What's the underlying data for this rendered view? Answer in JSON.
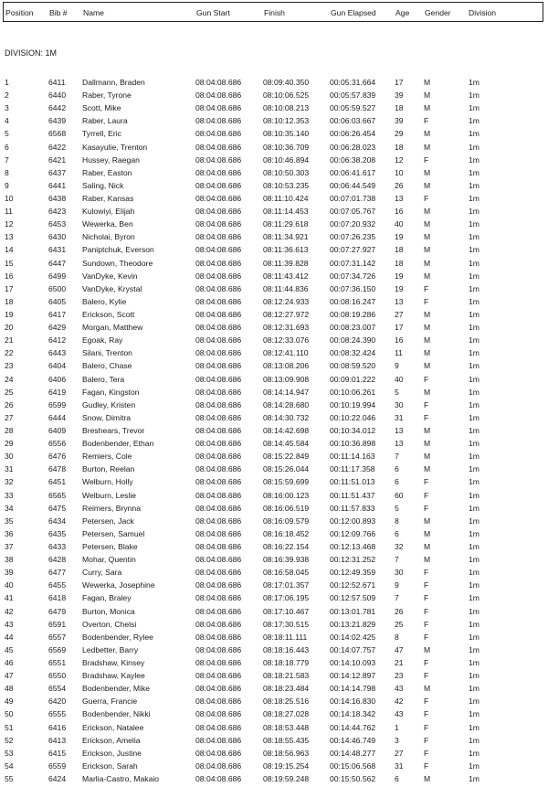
{
  "headers": [
    "Position",
    "Bib #",
    "Name",
    "Gun Start",
    "Finish",
    "Gun Elapsed",
    "Age",
    "Gender",
    "Division"
  ],
  "division_label": "DIVISION: 1M",
  "rows": [
    [
      "1",
      "6411",
      "Dallmann, Braden",
      "08:04:08.686",
      "08:09:40.350",
      "00:05:31.664",
      "17",
      "M",
      "1m"
    ],
    [
      "2",
      "6440",
      "Raber, Tyrone",
      "08:04:08.686",
      "08:10:06.525",
      "00:05:57.839",
      "39",
      "M",
      "1m"
    ],
    [
      "3",
      "6442",
      "Scott, Mike",
      "08:04:08.686",
      "08:10:08.213",
      "00:05:59.527",
      "18",
      "M",
      "1m"
    ],
    [
      "4",
      "6439",
      "Raber, Laura",
      "08:04:08.686",
      "08:10:12.353",
      "00:06:03.667",
      "39",
      "F",
      "1m"
    ],
    [
      "5",
      "6568",
      "Tyrrell, Eric",
      "08:04:08.686",
      "08:10:35.140",
      "00:06:26.454",
      "29",
      "M",
      "1m"
    ],
    [
      "6",
      "6422",
      "Kasayulie, Trenton",
      "08:04:08.686",
      "08:10:36.709",
      "00:06:28.023",
      "18",
      "M",
      "1m"
    ],
    [
      "7",
      "6421",
      "Hussey, Raegan",
      "08:04:08.686",
      "08:10:46.894",
      "00:06:38.208",
      "12",
      "F",
      "1m"
    ],
    [
      "8",
      "6437",
      "Raber, Easton",
      "08:04:08.686",
      "08:10:50.303",
      "00:06:41.617",
      "10",
      "M",
      "1m"
    ],
    [
      "9",
      "6441",
      "Saling, Nick",
      "08:04:08.686",
      "08:10:53.235",
      "00:06:44.549",
      "26",
      "M",
      "1m"
    ],
    [
      "10",
      "6438",
      "Raber, Kansas",
      "08:04:08.686",
      "08:11:10.424",
      "00:07:01.738",
      "13",
      "F",
      "1m"
    ],
    [
      "11",
      "6423",
      "Kulowiyi, Elijah",
      "08:04:08.686",
      "08:11:14.453",
      "00:07:05.767",
      "16",
      "M",
      "1m"
    ],
    [
      "12",
      "6453",
      "Wewerka, Ben",
      "08:04:08.686",
      "08:11:29.618",
      "00:07:20.932",
      "40",
      "M",
      "1m"
    ],
    [
      "13",
      "6430",
      "Nicholai, Byron",
      "08:04:08.686",
      "08:11:34.921",
      "00:07:26.235",
      "19",
      "M",
      "1m"
    ],
    [
      "14",
      "6431",
      "Paniptchuk, Everson",
      "08:04:08.686",
      "08:11:36.613",
      "00:07:27.927",
      "18",
      "M",
      "1m"
    ],
    [
      "15",
      "6447",
      "Sundown, Theodore",
      "08:04:08.686",
      "08:11:39.828",
      "00:07:31.142",
      "18",
      "M",
      "1m"
    ],
    [
      "16",
      "6499",
      "VanDyke, Kevin",
      "08:04:08.686",
      "08:11:43.412",
      "00:07:34.726",
      "19",
      "M",
      "1m"
    ],
    [
      "17",
      "6500",
      "VanDyke, Krystal",
      "08:04:08.686",
      "08:11:44.836",
      "00:07:36.150",
      "19",
      "F",
      "1m"
    ],
    [
      "18",
      "6405",
      "Balero, Kylie",
      "08:04:08.686",
      "08:12:24.933",
      "00:08:16.247",
      "13",
      "F",
      "1m"
    ],
    [
      "19",
      "6417",
      "Erickson, Scott",
      "08:04:08.686",
      "08:12:27.972",
      "00:08:19.286",
      "27",
      "M",
      "1m"
    ],
    [
      "20",
      "6429",
      "Morgan, Matthew",
      "08:04:08.686",
      "08:12:31.693",
      "00:08:23.007",
      "17",
      "M",
      "1m"
    ],
    [
      "21",
      "6412",
      "Egoak, Ray",
      "08:04:08.686",
      "08:12:33.076",
      "00:08:24.390",
      "16",
      "M",
      "1m"
    ],
    [
      "22",
      "6443",
      "Silani, Trenton",
      "08:04:08.686",
      "08:12:41.110",
      "00:08:32.424",
      "11",
      "M",
      "1m"
    ],
    [
      "23",
      "6404",
      "Balero, Chase",
      "08:04:08.686",
      "08:13:08.206",
      "00:08:59.520",
      "9",
      "M",
      "1m"
    ],
    [
      "24",
      "6406",
      "Balero, Tera",
      "08:04:08.686",
      "08:13:09.908",
      "00:09:01.222",
      "40",
      "F",
      "1m"
    ],
    [
      "25",
      "6419",
      "Fagan, Kingston",
      "08:04:08.686",
      "08:14:14.947",
      "00:10:06.261",
      "5",
      "M",
      "1m"
    ],
    [
      "26",
      "6599",
      "Gudley, Kristen",
      "08:04:08.686",
      "08:14:28.680",
      "00:10:19.994",
      "30",
      "F",
      "1m"
    ],
    [
      "27",
      "6444",
      "Snow, Dimitra",
      "08:04:08.686",
      "08:14:30.732",
      "00:10:22.046",
      "31",
      "F",
      "1m"
    ],
    [
      "28",
      "6409",
      "Breshears, Trevor",
      "08:04:08.686",
      "08:14:42.698",
      "00:10:34.012",
      "13",
      "M",
      "1m"
    ],
    [
      "29",
      "6556",
      "Bodenbender, Ethan",
      "08:04:08.686",
      "08:14:45.584",
      "00:10:36.898",
      "13",
      "M",
      "1m"
    ],
    [
      "30",
      "6476",
      "Remiers, Cole",
      "08:04:08.686",
      "08:15:22.849",
      "00:11:14.163",
      "7",
      "M",
      "1m"
    ],
    [
      "31",
      "6478",
      "Burton, Reelan",
      "08:04:08.686",
      "08:15:26.044",
      "00:11:17.358",
      "6",
      "M",
      "1m"
    ],
    [
      "32",
      "6451",
      "Welburn, Holly",
      "08:04:08.686",
      "08:15:59.699",
      "00:11:51.013",
      "6",
      "F",
      "1m"
    ],
    [
      "33",
      "6565",
      "Welburn, Leslie",
      "08:04:08.686",
      "08:16:00.123",
      "00:11:51.437",
      "60",
      "F",
      "1m"
    ],
    [
      "34",
      "6475",
      "Reimers, Brynna",
      "08:04:08.686",
      "08:16:06.519",
      "00:11:57.833",
      "5",
      "F",
      "1m"
    ],
    [
      "35",
      "6434",
      "Petersen, Jack",
      "08:04:08.686",
      "08:16:09.579",
      "00:12:00.893",
      "8",
      "M",
      "1m"
    ],
    [
      "36",
      "6435",
      "Petersen, Samuel",
      "08:04:08.686",
      "08:16:18.452",
      "00:12:09.766",
      "6",
      "M",
      "1m"
    ],
    [
      "37",
      "6433",
      "Petersen, Blake",
      "08:04:08.686",
      "08:16:22.154",
      "00:12:13.468",
      "32",
      "M",
      "1m"
    ],
    [
      "38",
      "6428",
      "Mohar, Quentin",
      "08:04:08.686",
      "08:16:39.938",
      "00:12:31.252",
      "7",
      "M",
      "1m"
    ],
    [
      "39",
      "6477",
      "Curry, Sara",
      "08:04:08.686",
      "08:16:58.045",
      "00:12:49.359",
      "30",
      "F",
      "1m"
    ],
    [
      "40",
      "6455",
      "Wewerka, Josephine",
      "08:04:08.686",
      "08:17:01.357",
      "00:12:52.671",
      "9",
      "F",
      "1m"
    ],
    [
      "41",
      "6418",
      "Fagan, Braley",
      "08:04:08.686",
      "08:17:06.195",
      "00:12:57.509",
      "7",
      "F",
      "1m"
    ],
    [
      "42",
      "6479",
      "Burton, Monica",
      "08:04:08.686",
      "08:17:10.467",
      "00:13:01.781",
      "26",
      "F",
      "1m"
    ],
    [
      "43",
      "6591",
      "Overton, Chelsi",
      "08:04:08.686",
      "08:17:30.515",
      "00:13:21.829",
      "25",
      "F",
      "1m"
    ],
    [
      "44",
      "6557",
      "Bodenbender, Rylee",
      "08:04:08.686",
      "08:18:11.111",
      "00:14:02.425",
      "8",
      "F",
      "1m"
    ],
    [
      "45",
      "6569",
      "Ledbetter, Barry",
      "08:04:08.686",
      "08:18:16.443",
      "00:14:07.757",
      "47",
      "M",
      "1m"
    ],
    [
      "46",
      "6551",
      "Bradshaw, Kinsey",
      "08:04:08.686",
      "08:18:18.779",
      "00:14:10.093",
      "21",
      "F",
      "1m"
    ],
    [
      "47",
      "6550",
      "Bradshaw, Kaylee",
      "08:04:08.686",
      "08:18:21.583",
      "00:14:12.897",
      "23",
      "F",
      "1m"
    ],
    [
      "48",
      "6554",
      "Bodenbender, Mike",
      "08:04:08.686",
      "08:18:23.484",
      "00:14:14.798",
      "43",
      "M",
      "1m"
    ],
    [
      "49",
      "6420",
      "Guerra, Francie",
      "08:04:08.686",
      "08:18:25.516",
      "00:14:16.830",
      "42",
      "F",
      "1m"
    ],
    [
      "50",
      "6555",
      "Bodenbender, Nikki",
      "08:04:08.686",
      "08:18:27.028",
      "00:14:18.342",
      "43",
      "F",
      "1m"
    ],
    [
      "51",
      "6416",
      "Erickson, Natalee",
      "08:04:08.686",
      "08:18:53.448",
      "00:14:44.762",
      "1",
      "F",
      "1m"
    ],
    [
      "52",
      "6413",
      "Erickson, Amelia",
      "08:04:08.686",
      "08:18:55.435",
      "00:14:46.749",
      "3",
      "F",
      "1m"
    ],
    [
      "53",
      "6415",
      "Erickson, Justine",
      "08:04:08.686",
      "08:18:56.963",
      "00:14:48.277",
      "27",
      "F",
      "1m"
    ],
    [
      "54",
      "6559",
      "Erickson, Sarah",
      "08:04:08.686",
      "08:19:15.254",
      "00:15:06.568",
      "31",
      "F",
      "1m"
    ],
    [
      "55",
      "6424",
      "Marlia-Castro, Makaio",
      "08:04:08.686",
      "08:19:59.248",
      "00:15:50.562",
      "6",
      "M",
      "1m"
    ]
  ]
}
